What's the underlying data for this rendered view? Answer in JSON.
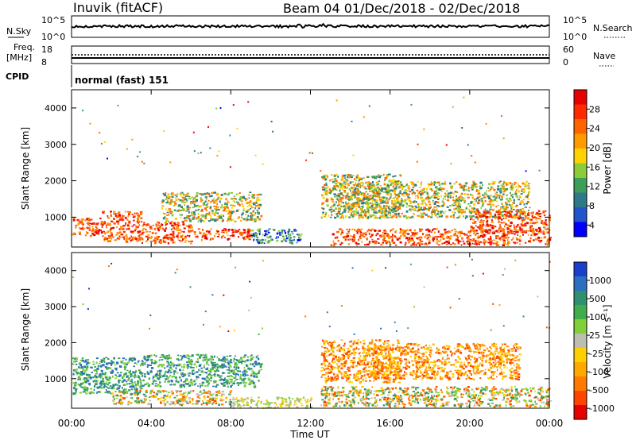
{
  "header": {
    "station": "Inuvik (fitACF)",
    "beam_date": "Beam 04  01/Dec/2018 - 02/Dec/2018"
  },
  "top_panels": {
    "nsky_label": "N.Sky",
    "nsky_ticks": [
      "10^5",
      "10^0"
    ],
    "nsearch_label": "N.Search",
    "nsearch_ticks": [
      "10^5",
      "10^0"
    ],
    "freq_label_1": "Freq.",
    "freq_label_2": "[MHz]",
    "freq_ticks": [
      "18",
      "8"
    ],
    "nave_label": "Nave",
    "nave_ticks": [
      "60",
      "0"
    ],
    "cpid_label": "CPID",
    "cpid_value": "normal (fast) 151"
  },
  "chart_data": [
    {
      "type": "heatmap",
      "name": "power",
      "ylabel": "Slant Range [km]",
      "yticks": [
        "4000",
        "3000",
        "2000",
        "1000"
      ],
      "ylim": [
        180,
        4500
      ],
      "xlim": [
        "00:00",
        "24:00"
      ],
      "colorbar": {
        "label": "Power [dB]",
        "ticks": [
          "28",
          "24",
          "20",
          "16",
          "12",
          "8",
          "4"
        ],
        "colors": [
          "#e60000",
          "#ff2a00",
          "#ff6400",
          "#ff9a00",
          "#ffd200",
          "#8ccc3a",
          "#3d9e5a",
          "#2e7a8a",
          "#2255cc",
          "#0000ff"
        ]
      },
      "regions": [
        {
          "t0": 0.0,
          "t1": 1.5,
          "r0": 500,
          "r1": 1000,
          "level": "high"
        },
        {
          "t0": 1.5,
          "t1": 3.5,
          "r0": 350,
          "r1": 1200,
          "level": "high"
        },
        {
          "t0": 3.5,
          "t1": 6.0,
          "r0": 300,
          "r1": 900,
          "level": "high"
        },
        {
          "t0": 4.5,
          "t1": 9.5,
          "r0": 900,
          "r1": 1700,
          "level": "mid"
        },
        {
          "t0": 6.0,
          "t1": 9.0,
          "r0": 400,
          "r1": 700,
          "level": "high"
        },
        {
          "t0": 9.0,
          "t1": 11.5,
          "r0": 300,
          "r1": 700,
          "level": "low"
        },
        {
          "t0": 12.5,
          "t1": 16.5,
          "r0": 1000,
          "r1": 2200,
          "level": "mid"
        },
        {
          "t0": 14.0,
          "t1": 23.0,
          "r0": 1000,
          "r1": 2000,
          "level": "mid"
        },
        {
          "t0": 13.0,
          "t1": 24.0,
          "r0": 250,
          "r1": 700,
          "level": "high"
        },
        {
          "t0": 20.0,
          "t1": 24.0,
          "r0": 600,
          "r1": 1200,
          "level": "high"
        }
      ]
    },
    {
      "type": "heatmap",
      "name": "velocity",
      "ylabel": "Slant Range [km]",
      "yticks": [
        "4000",
        "3000",
        "2000",
        "1000"
      ],
      "ylim": [
        180,
        4500
      ],
      "xlim": [
        "00:00",
        "24:00"
      ],
      "xticks": [
        "00:00",
        "04:00",
        "08:00",
        "12:00",
        "16:00",
        "20:00",
        "00:00"
      ],
      "xlabel": "Time UT",
      "colorbar": {
        "label": "Velocity [m s⁻¹]",
        "ticks": [
          "1000",
          "500",
          "100",
          "25",
          "-25",
          "-100",
          "-500",
          "-1000"
        ],
        "colors": [
          "#1a3fcc",
          "#2b6fc0",
          "#2f8f70",
          "#3fae4a",
          "#7fd03a",
          "#bdbdb0",
          "#ffd000",
          "#ffa800",
          "#ff7a00",
          "#ff4400",
          "#e60000"
        ]
      },
      "regions": [
        {
          "t0": 0.0,
          "t1": 3.5,
          "r0": 600,
          "r1": 1600,
          "level": "towards"
        },
        {
          "t0": 3.5,
          "t1": 9.5,
          "r0": 800,
          "r1": 1700,
          "level": "towards"
        },
        {
          "t0": 2.0,
          "t1": 8.0,
          "r0": 300,
          "r1": 700,
          "level": "mixed"
        },
        {
          "t0": 8.0,
          "t1": 12.0,
          "r0": 200,
          "r1": 500,
          "level": "near"
        },
        {
          "t0": 12.5,
          "t1": 16.5,
          "r0": 900,
          "r1": 2100,
          "level": "away"
        },
        {
          "t0": 15.0,
          "t1": 22.5,
          "r0": 1000,
          "r1": 2000,
          "level": "away"
        },
        {
          "t0": 12.5,
          "t1": 24.0,
          "r0": 250,
          "r1": 800,
          "level": "mixed"
        }
      ]
    }
  ]
}
